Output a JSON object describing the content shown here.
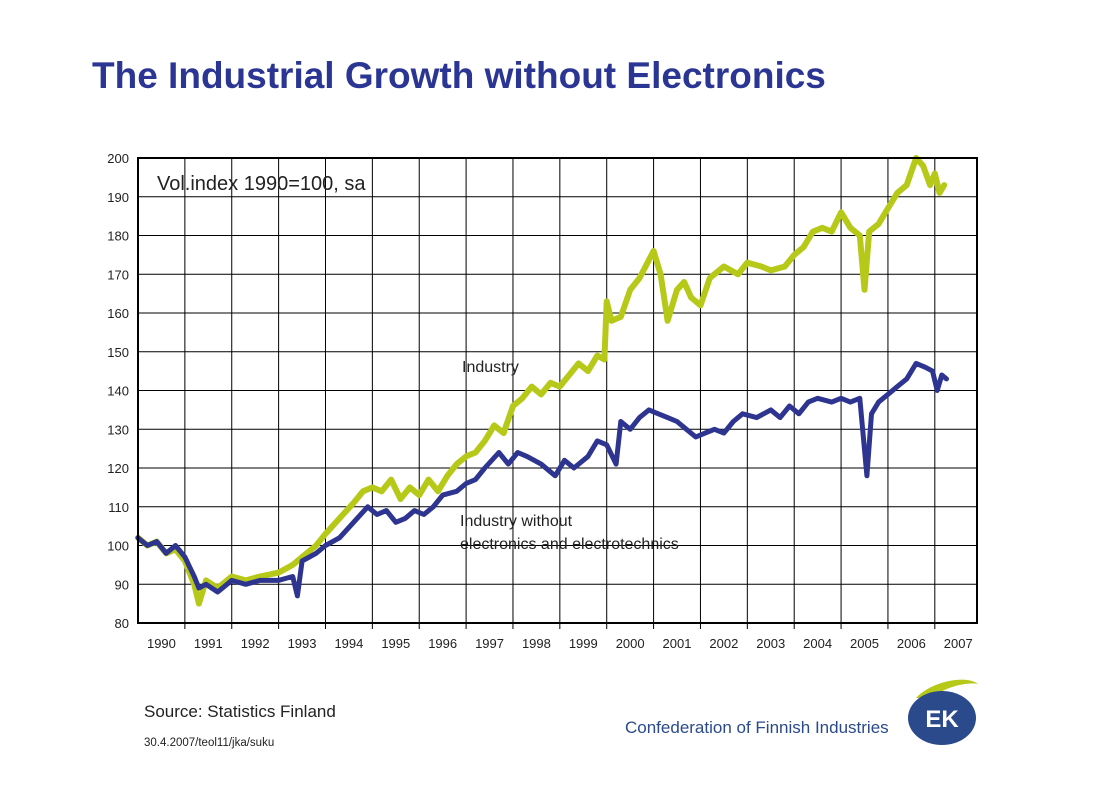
{
  "slide": {
    "title": "The Industrial Growth without Electronics",
    "source": "Source: Statistics Finland",
    "footnote": "30.4.2007/teol11/jka/suku",
    "organization": "Confederation of Finnish Industries",
    "logo_text": "EK",
    "colors": {
      "title": "#2b3593",
      "industry": "#b7c918",
      "industry_wo_electronics": "#2e3590",
      "logo_green": "#b7c918",
      "logo_blue": "#2b4a8c"
    }
  },
  "chart_data": {
    "type": "line",
    "annotation": "Vol.index 1990=100, sa",
    "xlabel": "",
    "ylabel": "",
    "ylim": [
      80,
      200
    ],
    "yticks": [
      80,
      90,
      100,
      110,
      120,
      130,
      140,
      150,
      160,
      170,
      180,
      190,
      200
    ],
    "xlim": [
      1990,
      2007.9
    ],
    "xticks": [
      "1990",
      "1991",
      "1992",
      "1993",
      "1994",
      "1995",
      "1996",
      "1997",
      "1998",
      "1999",
      "2000",
      "2001",
      "2002",
      "2003",
      "2004",
      "2005",
      "2006",
      "2007"
    ],
    "grid": true,
    "legend": "none",
    "series": [
      {
        "name": "Industry",
        "label_position": "above-line-1997",
        "color": "#b7c918",
        "points": [
          [
            1990.0,
            102
          ],
          [
            1990.2,
            100
          ],
          [
            1990.4,
            101
          ],
          [
            1990.6,
            98
          ],
          [
            1990.8,
            99
          ],
          [
            1991.0,
            96
          ],
          [
            1991.2,
            90
          ],
          [
            1991.3,
            85
          ],
          [
            1991.45,
            91
          ],
          [
            1991.7,
            89
          ],
          [
            1992.0,
            92
          ],
          [
            1992.3,
            91
          ],
          [
            1992.6,
            92
          ],
          [
            1993.0,
            93
          ],
          [
            1993.3,
            95
          ],
          [
            1993.5,
            97
          ],
          [
            1993.8,
            100
          ],
          [
            1994.0,
            103
          ],
          [
            1994.3,
            107
          ],
          [
            1994.6,
            111
          ],
          [
            1994.8,
            114
          ],
          [
            1995.0,
            115
          ],
          [
            1995.2,
            114
          ],
          [
            1995.4,
            117
          ],
          [
            1995.6,
            112
          ],
          [
            1995.8,
            115
          ],
          [
            1996.0,
            113
          ],
          [
            1996.2,
            117
          ],
          [
            1996.4,
            114
          ],
          [
            1996.6,
            118
          ],
          [
            1996.8,
            121
          ],
          [
            1997.0,
            123
          ],
          [
            1997.2,
            124
          ],
          [
            1997.4,
            127
          ],
          [
            1997.6,
            131
          ],
          [
            1997.8,
            129
          ],
          [
            1998.0,
            136
          ],
          [
            1998.2,
            138
          ],
          [
            1998.4,
            141
          ],
          [
            1998.6,
            139
          ],
          [
            1998.8,
            142
          ],
          [
            1999.0,
            141
          ],
          [
            1999.2,
            144
          ],
          [
            1999.4,
            147
          ],
          [
            1999.6,
            145
          ],
          [
            1999.8,
            149
          ],
          [
            1999.95,
            148
          ],
          [
            2000.0,
            163
          ],
          [
            2000.1,
            158
          ],
          [
            2000.3,
            159
          ],
          [
            2000.5,
            166
          ],
          [
            2000.7,
            169
          ],
          [
            2001.0,
            176
          ],
          [
            2001.15,
            170
          ],
          [
            2001.3,
            158
          ],
          [
            2001.5,
            166
          ],
          [
            2001.65,
            168
          ],
          [
            2001.8,
            164
          ],
          [
            2002.0,
            162
          ],
          [
            2002.2,
            169
          ],
          [
            2002.5,
            172
          ],
          [
            2002.8,
            170
          ],
          [
            2003.0,
            173
          ],
          [
            2003.3,
            172
          ],
          [
            2003.5,
            171
          ],
          [
            2003.8,
            172
          ],
          [
            2004.0,
            175
          ],
          [
            2004.2,
            177
          ],
          [
            2004.4,
            181
          ],
          [
            2004.6,
            182
          ],
          [
            2004.8,
            181
          ],
          [
            2005.0,
            186
          ],
          [
            2005.2,
            182
          ],
          [
            2005.4,
            180
          ],
          [
            2005.5,
            166
          ],
          [
            2005.6,
            181
          ],
          [
            2005.8,
            183
          ],
          [
            2006.0,
            187
          ],
          [
            2006.2,
            191
          ],
          [
            2006.4,
            193
          ],
          [
            2006.6,
            200
          ],
          [
            2006.75,
            198
          ],
          [
            2006.9,
            193
          ],
          [
            2007.0,
            196
          ],
          [
            2007.1,
            191
          ],
          [
            2007.2,
            193
          ]
        ]
      },
      {
        "name": "Industry without electronics and electrotechnics",
        "label_position": "below-line-1997",
        "color": "#2e3590",
        "points": [
          [
            1990.0,
            102
          ],
          [
            1990.2,
            100
          ],
          [
            1990.4,
            101
          ],
          [
            1990.6,
            98
          ],
          [
            1990.8,
            100
          ],
          [
            1991.0,
            97
          ],
          [
            1991.2,
            92
          ],
          [
            1991.3,
            89
          ],
          [
            1991.45,
            90
          ],
          [
            1991.7,
            88
          ],
          [
            1992.0,
            91
          ],
          [
            1992.3,
            90
          ],
          [
            1992.6,
            91
          ],
          [
            1993.0,
            91
          ],
          [
            1993.3,
            92
          ],
          [
            1993.4,
            87
          ],
          [
            1993.5,
            96
          ],
          [
            1993.8,
            98
          ],
          [
            1994.0,
            100
          ],
          [
            1994.3,
            102
          ],
          [
            1994.6,
            106
          ],
          [
            1994.9,
            110
          ],
          [
            1995.1,
            108
          ],
          [
            1995.3,
            109
          ],
          [
            1995.5,
            106
          ],
          [
            1995.7,
            107
          ],
          [
            1995.9,
            109
          ],
          [
            1996.1,
            108
          ],
          [
            1996.3,
            110
          ],
          [
            1996.5,
            113
          ],
          [
            1996.8,
            114
          ],
          [
            1997.0,
            116
          ],
          [
            1997.2,
            117
          ],
          [
            1997.4,
            120
          ],
          [
            1997.7,
            124
          ],
          [
            1997.9,
            121
          ],
          [
            1998.1,
            124
          ],
          [
            1998.3,
            123
          ],
          [
            1998.6,
            121
          ],
          [
            1998.9,
            118
          ],
          [
            1999.1,
            122
          ],
          [
            1999.3,
            120
          ],
          [
            1999.6,
            123
          ],
          [
            1999.8,
            127
          ],
          [
            2000.0,
            126
          ],
          [
            2000.2,
            121
          ],
          [
            2000.3,
            132
          ],
          [
            2000.5,
            130
          ],
          [
            2000.7,
            133
          ],
          [
            2000.9,
            135
          ],
          [
            2001.1,
            134
          ],
          [
            2001.3,
            133
          ],
          [
            2001.5,
            132
          ],
          [
            2001.7,
            130
          ],
          [
            2001.9,
            128
          ],
          [
            2002.1,
            129
          ],
          [
            2002.3,
            130
          ],
          [
            2002.5,
            129
          ],
          [
            2002.7,
            132
          ],
          [
            2002.9,
            134
          ],
          [
            2003.2,
            133
          ],
          [
            2003.5,
            135
          ],
          [
            2003.7,
            133
          ],
          [
            2003.9,
            136
          ],
          [
            2004.1,
            134
          ],
          [
            2004.3,
            137
          ],
          [
            2004.5,
            138
          ],
          [
            2004.8,
            137
          ],
          [
            2005.0,
            138
          ],
          [
            2005.2,
            137
          ],
          [
            2005.4,
            138
          ],
          [
            2005.55,
            118
          ],
          [
            2005.65,
            134
          ],
          [
            2005.8,
            137
          ],
          [
            2006.0,
            139
          ],
          [
            2006.2,
            141
          ],
          [
            2006.4,
            143
          ],
          [
            2006.6,
            147
          ],
          [
            2006.8,
            146
          ],
          [
            2006.95,
            145
          ],
          [
            2007.05,
            140
          ],
          [
            2007.15,
            144
          ],
          [
            2007.25,
            143
          ]
        ]
      }
    ],
    "labels": {
      "annotation": "Vol.index 1990=100, sa",
      "industry": "Industry",
      "industry_wo_line1": "Industry without",
      "industry_wo_line2": "electronics and electrotechnics"
    }
  }
}
